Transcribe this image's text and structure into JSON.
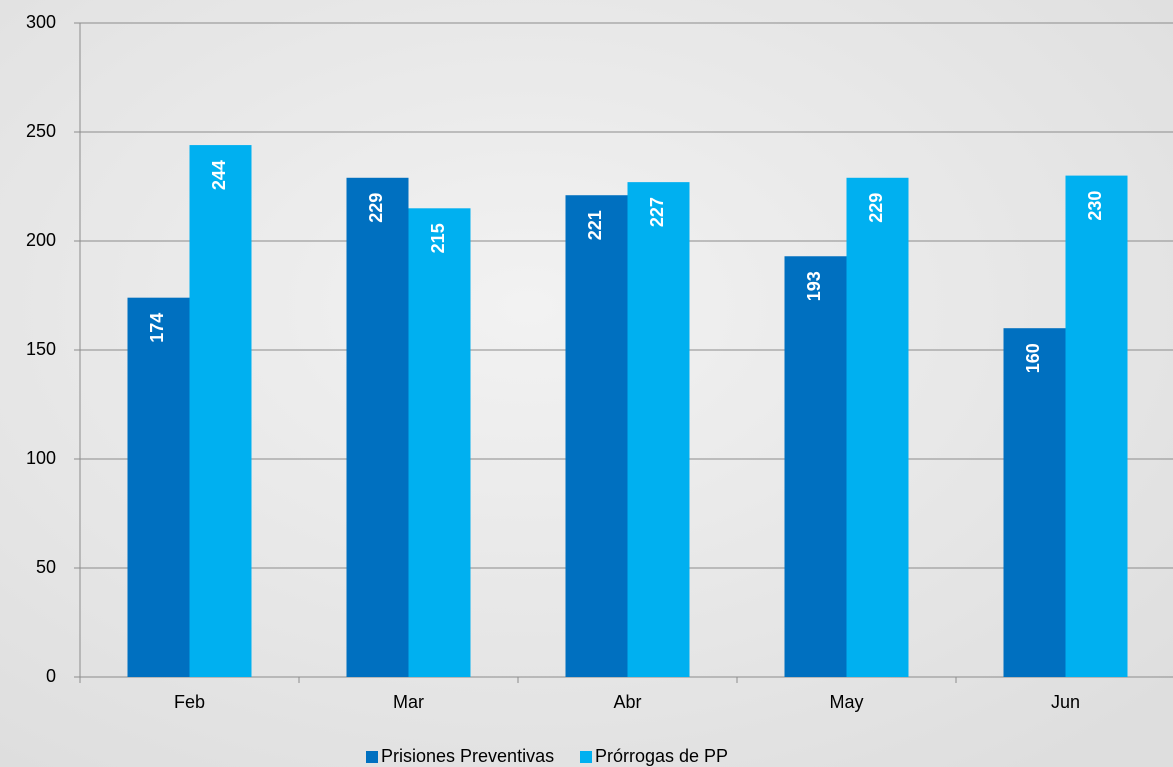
{
  "chart_data": {
    "type": "bar",
    "categories": [
      "Feb",
      "Mar",
      "Abr",
      "May",
      "Jun"
    ],
    "series": [
      {
        "name": "Prisiones Preventivas",
        "color": "#0070c0",
        "values": [
          174,
          229,
          221,
          193,
          160
        ]
      },
      {
        "name": "Prórrogas de PP",
        "color": "#00b0f0",
        "values": [
          244,
          215,
          227,
          229,
          230
        ]
      }
    ],
    "ylim": [
      0,
      300
    ],
    "yticks": [
      0,
      50,
      100,
      150,
      200,
      250,
      300
    ],
    "grid": true,
    "legend": "bottom"
  }
}
